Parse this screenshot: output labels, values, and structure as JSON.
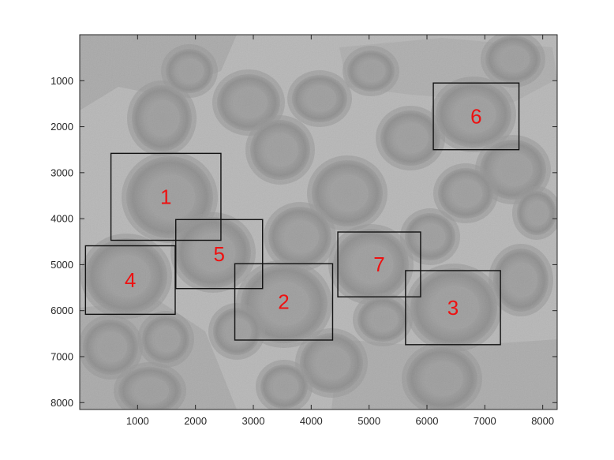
{
  "figure": {
    "image_description_icon": "grayscale-micrograph-icon",
    "x_axis": {
      "ticks": [
        "1000",
        "2000",
        "3000",
        "4000",
        "5000",
        "6000",
        "7000",
        "8000"
      ],
      "range": [
        0,
        8250
      ]
    },
    "y_axis": {
      "ticks": [
        "1000",
        "2000",
        "3000",
        "4000",
        "5000",
        "6000",
        "7000",
        "8000"
      ],
      "range": [
        0,
        8150
      ],
      "direction": "reversed"
    },
    "regions": [
      {
        "label": "1",
        "x": [
          540,
          2440
        ],
        "y": [
          2580,
          4470
        ]
      },
      {
        "label": "2",
        "x": [
          2680,
          4370
        ],
        "y": [
          4980,
          6640
        ]
      },
      {
        "label": "3",
        "x": [
          5630,
          7270
        ],
        "y": [
          5130,
          6740
        ]
      },
      {
        "label": "4",
        "x": [
          100,
          1650
        ],
        "y": [
          4590,
          6080
        ]
      },
      {
        "label": "5",
        "x": [
          1660,
          3160
        ],
        "y": [
          4020,
          5520
        ]
      },
      {
        "label": "6",
        "x": [
          6110,
          7590
        ],
        "y": [
          1050,
          2500
        ]
      },
      {
        "label": "7",
        "x": [
          4460,
          5890
        ],
        "y": [
          4290,
          5700
        ]
      }
    ],
    "colors": {
      "label": "#ee1111",
      "box": "#111111",
      "background": "#bdbdbd"
    }
  }
}
